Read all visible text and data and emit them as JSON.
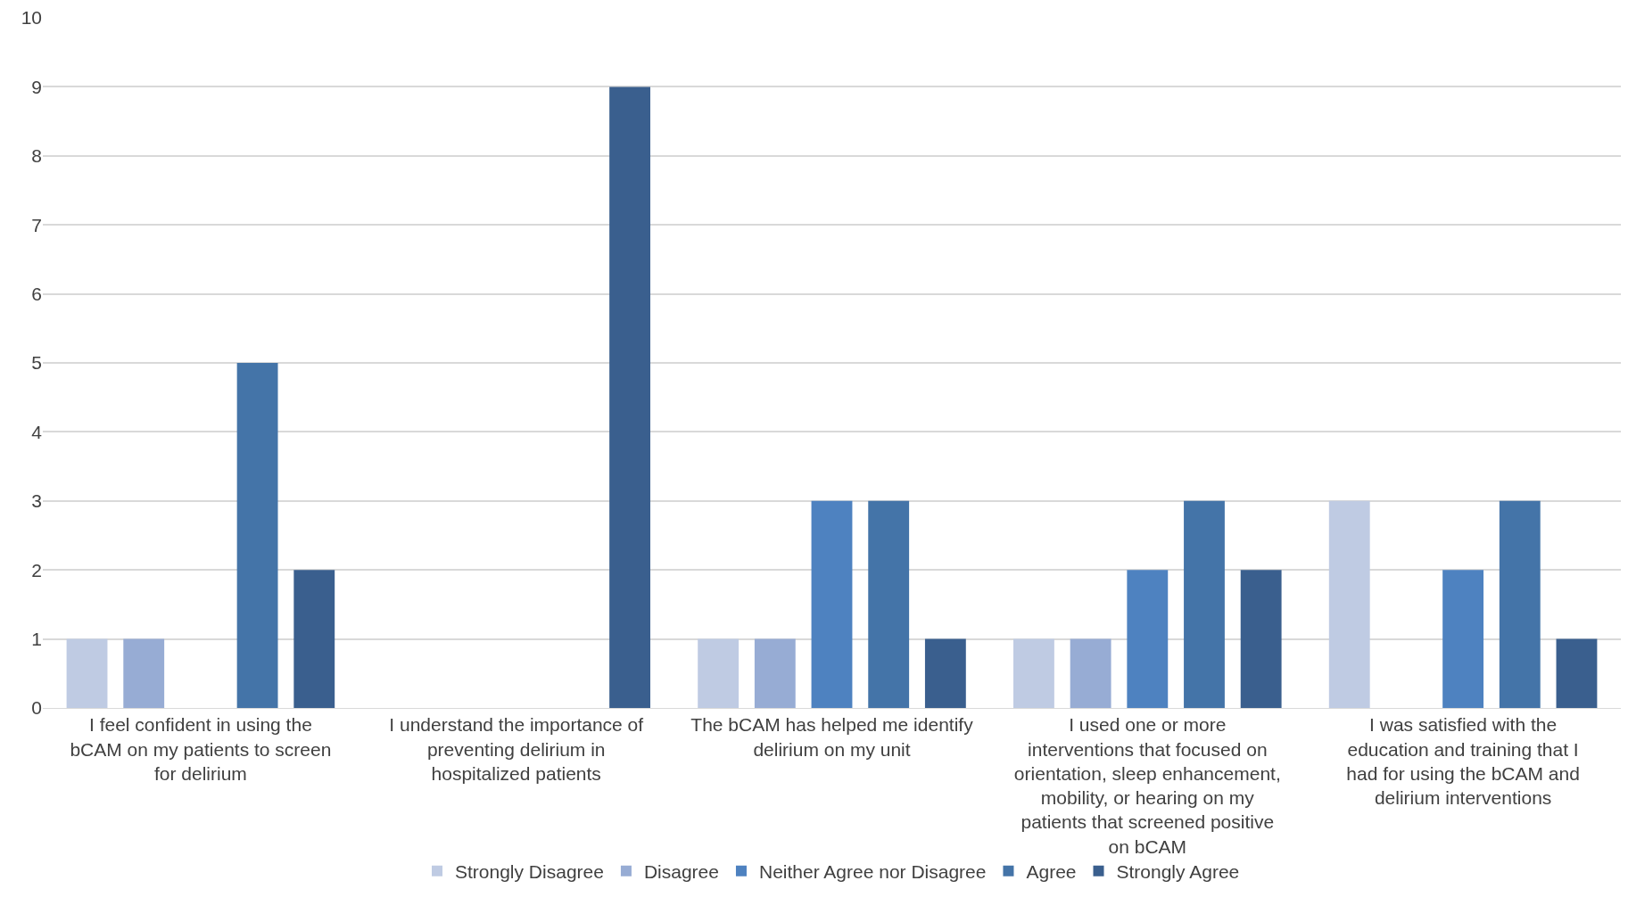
{
  "chart_data": {
    "type": "bar",
    "categories": [
      "I feel confident in using the bCAM on my patients to screen for delirium",
      "I understand the importance of preventing delirium in hospitalized patients",
      "The bCAM has helped me identify delirium on my unit",
      "I used one or more interventions that focused on orientation, sleep enhancement, mobility, or hearing on my patients that screened positive on bCAM",
      "I was satisfied with the education and training that I had for using the bCAM and delirium interventions"
    ],
    "series": [
      {
        "name": "Strongly Disagree",
        "color": "#bfcbe3",
        "values": [
          1,
          0,
          1,
          1,
          3
        ]
      },
      {
        "name": "Disagree",
        "color": "#97acd4",
        "values": [
          1,
          0,
          1,
          1,
          0
        ]
      },
      {
        "name": "Neither Agree nor Disagree",
        "color": "#4e82c0",
        "values": [
          0,
          0,
          3,
          2,
          2
        ]
      },
      {
        "name": "Agree",
        "color": "#4474a8",
        "values": [
          5,
          0,
          3,
          3,
          3
        ]
      },
      {
        "name": "Strongly Agree",
        "color": "#3a5f8e",
        "values": [
          2,
          9,
          1,
          2,
          1
        ]
      }
    ],
    "ylim": [
      0,
      10
    ],
    "yticks": [
      0,
      1,
      2,
      3,
      4,
      5,
      6,
      7,
      8,
      9,
      10
    ],
    "grid": "y",
    "legend": "bottom"
  }
}
